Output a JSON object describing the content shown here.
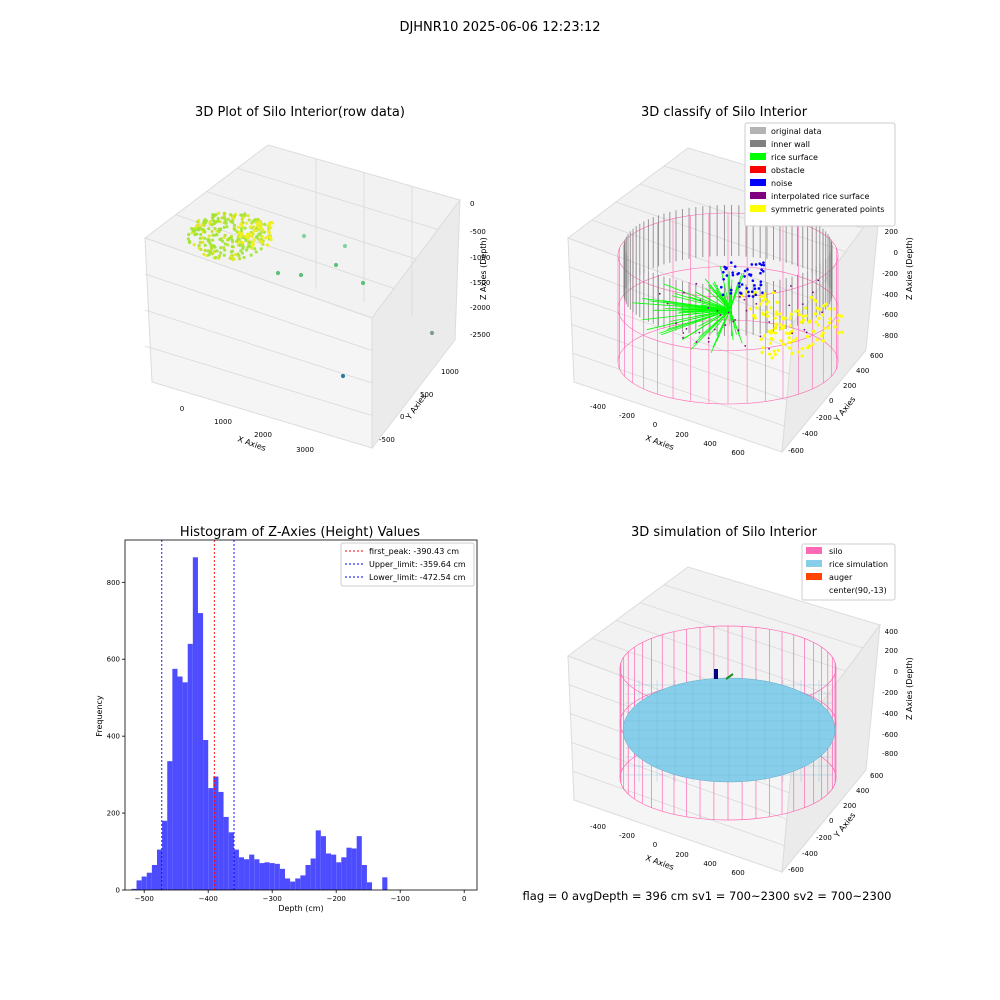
{
  "suptitle": "DJHNR10 2025-06-06 12:23:12",
  "footer": "flag = 0     avgDepth = 396 cm  sv1 = 700~2300  sv2 = 700~2300",
  "colors": {
    "rice_surface": "#00ff00",
    "inner_wall": "#808080",
    "original": "#b3b3b3",
    "obstacle": "#ff0000",
    "noise": "#0000ff",
    "interp": "#800080",
    "symmetric": "#ffff00",
    "silo": "#ff69b4",
    "rice_sim": "#87ceeb",
    "auger": "#ff4500",
    "hist_bar": "#4d4dff"
  },
  "chart_data": [
    {
      "type": "scatter",
      "title": "3D Plot of Silo Interior(row data)",
      "xlabel": "X Axies",
      "ylabel": "Y Axies",
      "zlabel": "Z Axies (Depth)",
      "x_ticks": [
        "0",
        "1000",
        "2000",
        "3000"
      ],
      "y_ticks": [
        "-500",
        "0",
        "500",
        "1000"
      ],
      "z_ticks": [
        "0",
        "-500",
        "-1000",
        "-1500",
        "-2000",
        "-2500"
      ]
    },
    {
      "type": "scatter",
      "title": "3D classify of Silo Interior",
      "xlabel": "X Axies",
      "ylabel": "Y Axies",
      "zlabel": "Z Axies (Depth)",
      "x_ticks": [
        "-400",
        "-200",
        "0",
        "200",
        "400",
        "600"
      ],
      "y_ticks": [
        "-600",
        "-400",
        "-200",
        "0",
        "200",
        "400",
        "600"
      ],
      "z_ticks": [
        "200",
        "0",
        "-200",
        "-400",
        "-600",
        "-800"
      ],
      "legend": [
        {
          "label": "original data",
          "color": "#b3b3b3"
        },
        {
          "label": "inner wall",
          "color": "#808080"
        },
        {
          "label": "rice surface",
          "color": "#00ff00"
        },
        {
          "label": "obstacle",
          "color": "#ff0000"
        },
        {
          "label": "noise",
          "color": "#0000ff"
        },
        {
          "label": "interpolated rice surface",
          "color": "#800080"
        },
        {
          "label": "symmetric generated points",
          "color": "#ffff00"
        }
      ],
      "legend_loc": "upper right"
    },
    {
      "type": "bar",
      "title": "Histogram of Z-Axies (Height) Values",
      "xlabel": "Depth (cm)",
      "ylabel": "Frequency",
      "xlim": [
        -530,
        20
      ],
      "ylim": [
        0,
        910
      ],
      "x_ticks": [
        -500,
        -400,
        -300,
        -200,
        -100,
        0
      ],
      "y_ticks": [
        0,
        200,
        400,
        600,
        800
      ],
      "bin_start": -520,
      "bin_width": 8,
      "values": [
        3,
        25,
        35,
        45,
        65,
        105,
        180,
        335,
        575,
        555,
        540,
        640,
        865,
        720,
        390,
        265,
        295,
        255,
        190,
        150,
        105,
        85,
        80,
        92,
        80,
        70,
        72,
        70,
        68,
        55,
        30,
        22,
        30,
        38,
        65,
        82,
        155,
        140,
        95,
        92,
        72,
        85,
        110,
        108,
        140,
        65,
        20,
        0,
        0,
        33
      ],
      "vlines": [
        {
          "label": "first_peak: -390.43 cm",
          "x": -390.43,
          "color": "#ff0000"
        },
        {
          "label": "Upper_limit: -359.64 cm",
          "x": -359.64,
          "color": "#0000ff"
        },
        {
          "label": "Lower_limit: -472.54 cm",
          "x": -472.54,
          "color": "#0000ff"
        }
      ],
      "legend_loc": "upper right"
    },
    {
      "type": "scatter",
      "title": "3D simulation of Silo Interior",
      "xlabel": "X Axies",
      "ylabel": "Y Axies",
      "zlabel": "Z Axies (Depth)",
      "x_ticks": [
        "-400",
        "-200",
        "0",
        "200",
        "400",
        "600"
      ],
      "y_ticks": [
        "-600",
        "-400",
        "-200",
        "0",
        "200",
        "400",
        "600"
      ],
      "z_ticks": [
        "400",
        "200",
        "0",
        "-200",
        "-400",
        "-600",
        "-800"
      ],
      "legend": [
        {
          "label": "silo",
          "color": "#ff69b4"
        },
        {
          "label": "rice simulation",
          "color": "#87ceeb"
        },
        {
          "label": "auger",
          "color": "#ff4500"
        },
        {
          "label": "center(90,-13)",
          "color": ""
        }
      ],
      "legend_loc": "upper right"
    }
  ]
}
